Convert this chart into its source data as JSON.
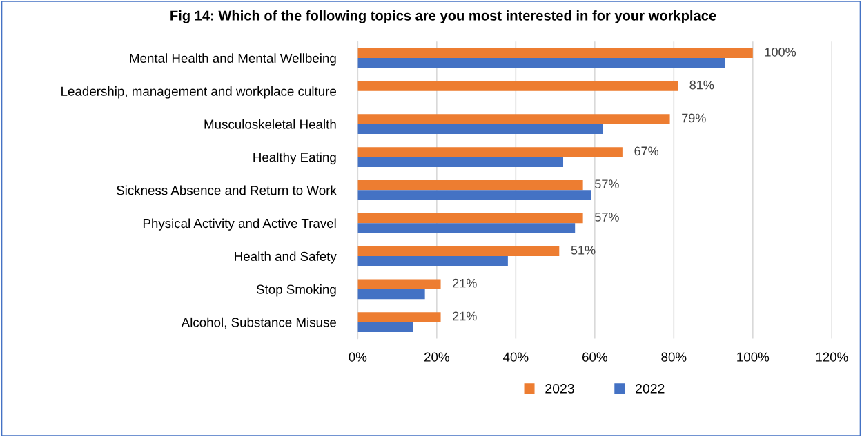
{
  "chart_data": {
    "type": "bar",
    "orientation": "horizontal",
    "title": "Fig 14: Which of the following topics are you most interested in for your workplace",
    "categories": [
      "Mental Health and Mental Wellbeing",
      "Leadership, management and workplace culture",
      "Musculoskeletal Health",
      "Healthy Eating",
      "Sickness Absence and Return to Work",
      "Physical Activity and Active Travel",
      "Health and Safety",
      "Stop Smoking",
      "Alcohol, Substance Misuse"
    ],
    "series": [
      {
        "name": "2023",
        "color": "#ed7d31",
        "values": [
          100,
          81,
          79,
          67,
          57,
          57,
          51,
          21,
          21
        ],
        "value_labels": [
          "100%",
          "81%",
          "79%",
          "67%",
          "57%",
          "57%",
          "51%",
          "21%",
          "21%"
        ]
      },
      {
        "name": "2022",
        "color": "#4472c4",
        "values": [
          93,
          null,
          62,
          52,
          59,
          55,
          38,
          17,
          14
        ]
      }
    ],
    "xlim": [
      0,
      120
    ],
    "xticks": [
      {
        "value": 0,
        "label": "0%"
      },
      {
        "value": 20,
        "label": "20%"
      },
      {
        "value": 40,
        "label": "40%"
      },
      {
        "value": 60,
        "label": "60%"
      },
      {
        "value": 80,
        "label": "80%"
      },
      {
        "value": 100,
        "label": "100%"
      },
      {
        "value": 120,
        "label": "120%"
      }
    ],
    "grid": "x",
    "legend": "bottom"
  }
}
